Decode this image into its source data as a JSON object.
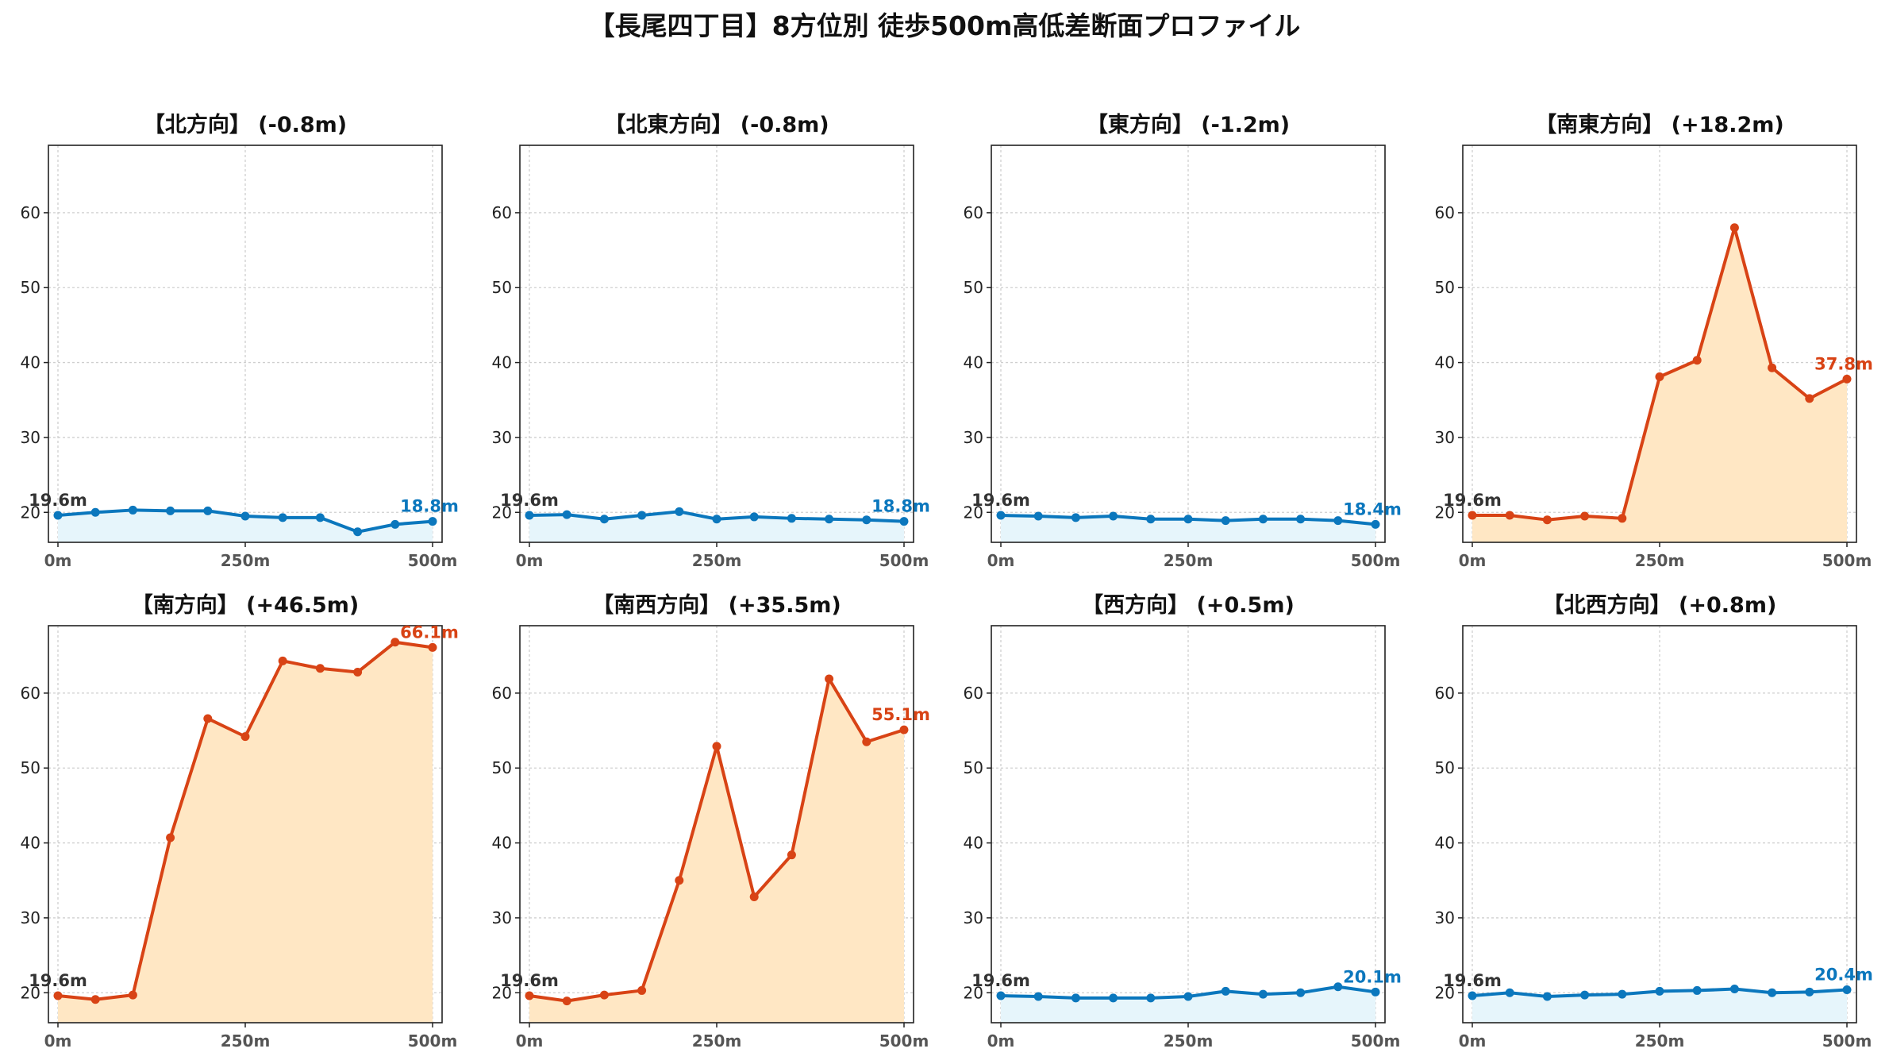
{
  "figure_title": "【長尾四丁目】8方位別 徒歩500m高低差断面プロファイル",
  "colors": {
    "up_line": "#d84315",
    "up_fill": "#ffe7c4",
    "down_line": "#0b77bd",
    "down_fill": "#e6f5fb",
    "grid": "#cfcfcf",
    "start_label": "#333333",
    "tick_x": "#555555"
  },
  "chart_data": [
    {
      "type": "area",
      "title": "【北方向】 (-0.8m)",
      "trend": "down",
      "x": [
        0,
        50,
        100,
        150,
        200,
        250,
        300,
        350,
        400,
        450,
        500
      ],
      "values": [
        19.6,
        20.0,
        20.3,
        20.2,
        20.2,
        19.5,
        19.3,
        19.3,
        17.4,
        18.4,
        18.8
      ],
      "start_label": "19.6m",
      "end_label": "18.8m",
      "xticks": [
        "0m",
        "250m",
        "500m"
      ],
      "yticks": [
        20,
        30,
        40,
        50,
        60
      ],
      "ylim": [
        16,
        69
      ],
      "grid": true
    },
    {
      "type": "area",
      "title": "【北東方向】 (-0.8m)",
      "trend": "down",
      "x": [
        0,
        50,
        100,
        150,
        200,
        250,
        300,
        350,
        400,
        450,
        500
      ],
      "values": [
        19.6,
        19.7,
        19.1,
        19.6,
        20.1,
        19.1,
        19.4,
        19.2,
        19.1,
        19.0,
        18.8
      ],
      "start_label": "19.6m",
      "end_label": "18.8m",
      "xticks": [
        "0m",
        "250m",
        "500m"
      ],
      "yticks": [
        20,
        30,
        40,
        50,
        60
      ],
      "ylim": [
        16,
        69
      ],
      "grid": true
    },
    {
      "type": "area",
      "title": "【東方向】 (-1.2m)",
      "trend": "down",
      "x": [
        0,
        50,
        100,
        150,
        200,
        250,
        300,
        350,
        400,
        450,
        500
      ],
      "values": [
        19.6,
        19.5,
        19.3,
        19.5,
        19.1,
        19.1,
        18.9,
        19.1,
        19.1,
        18.9,
        18.4
      ],
      "start_label": "19.6m",
      "end_label": "18.4m",
      "xticks": [
        "0m",
        "250m",
        "500m"
      ],
      "yticks": [
        20,
        30,
        40,
        50,
        60
      ],
      "ylim": [
        16,
        69
      ],
      "grid": true
    },
    {
      "type": "area",
      "title": "【南東方向】 (+18.2m)",
      "trend": "up",
      "x": [
        0,
        50,
        100,
        150,
        200,
        250,
        300,
        350,
        400,
        450,
        500
      ],
      "values": [
        19.6,
        19.6,
        19.0,
        19.5,
        19.2,
        38.1,
        40.3,
        58.0,
        39.3,
        35.2,
        37.8
      ],
      "start_label": "19.6m",
      "end_label": "37.8m",
      "xticks": [
        "0m",
        "250m",
        "500m"
      ],
      "yticks": [
        20,
        30,
        40,
        50,
        60
      ],
      "ylim": [
        16,
        69
      ],
      "grid": true
    },
    {
      "type": "area",
      "title": "【南方向】 (+46.5m)",
      "trend": "up",
      "x": [
        0,
        50,
        100,
        150,
        200,
        250,
        300,
        350,
        400,
        450,
        500
      ],
      "values": [
        19.6,
        19.1,
        19.7,
        40.7,
        56.6,
        54.2,
        64.3,
        63.3,
        62.8,
        66.8,
        66.1
      ],
      "start_label": "19.6m",
      "end_label": "66.1m",
      "xticks": [
        "0m",
        "250m",
        "500m"
      ],
      "yticks": [
        20,
        30,
        40,
        50,
        60
      ],
      "ylim": [
        16,
        69
      ],
      "grid": true
    },
    {
      "type": "area",
      "title": "【南西方向】 (+35.5m)",
      "trend": "up",
      "x": [
        0,
        50,
        100,
        150,
        200,
        250,
        300,
        350,
        400,
        450,
        500
      ],
      "values": [
        19.6,
        18.9,
        19.7,
        20.3,
        35.0,
        52.9,
        32.8,
        38.4,
        61.9,
        53.5,
        55.1
      ],
      "start_label": "19.6m",
      "end_label": "55.1m",
      "xticks": [
        "0m",
        "250m",
        "500m"
      ],
      "yticks": [
        20,
        30,
        40,
        50,
        60
      ],
      "ylim": [
        16,
        69
      ],
      "grid": true
    },
    {
      "type": "area",
      "title": "【西方向】 (+0.5m)",
      "trend": "down",
      "x": [
        0,
        50,
        100,
        150,
        200,
        250,
        300,
        350,
        400,
        450,
        500
      ],
      "values": [
        19.6,
        19.5,
        19.3,
        19.3,
        19.3,
        19.5,
        20.2,
        19.8,
        20.0,
        20.8,
        20.1
      ],
      "start_label": "19.6m",
      "end_label": "20.1m",
      "xticks": [
        "0m",
        "250m",
        "500m"
      ],
      "yticks": [
        20,
        30,
        40,
        50,
        60
      ],
      "ylim": [
        16,
        69
      ],
      "grid": true
    },
    {
      "type": "area",
      "title": "【北西方向】 (+0.8m)",
      "trend": "down",
      "x": [
        0,
        50,
        100,
        150,
        200,
        250,
        300,
        350,
        400,
        450,
        500
      ],
      "values": [
        19.6,
        20.0,
        19.5,
        19.7,
        19.8,
        20.2,
        20.3,
        20.5,
        20.0,
        20.1,
        20.4
      ],
      "start_label": "19.6m",
      "end_label": "20.4m",
      "xticks": [
        "0m",
        "250m",
        "500m"
      ],
      "yticks": [
        20,
        30,
        40,
        50,
        60
      ],
      "ylim": [
        16,
        69
      ],
      "grid": true
    }
  ]
}
